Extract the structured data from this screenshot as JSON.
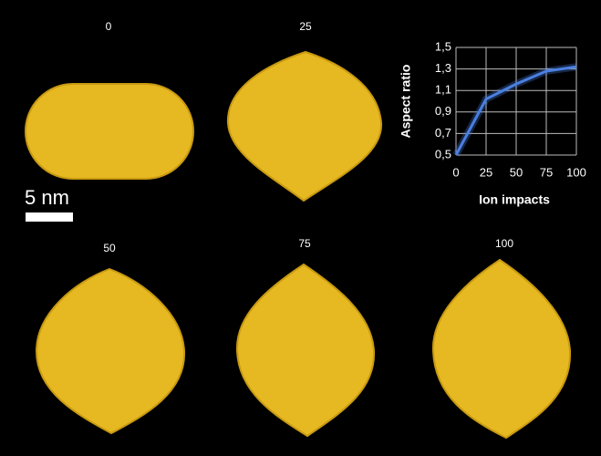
{
  "panels": [
    "0",
    "25",
    "50",
    "75",
    "100"
  ],
  "scale_bar": "5 nm",
  "chart_data": {
    "type": "line",
    "x": [
      0,
      25,
      50,
      75,
      100
    ],
    "series": [
      {
        "name": "Aspect ratio",
        "color": "#4a7fe0",
        "values": [
          0.5,
          1.02,
          1.16,
          1.28,
          1.32
        ]
      }
    ],
    "xlim": [
      0,
      100
    ],
    "xticks": [
      0,
      25,
      50,
      75,
      100
    ],
    "ylim": [
      0.5,
      1.5
    ],
    "yticks": [
      {
        "value": 0.5,
        "label": "0,5"
      },
      {
        "value": 0.7,
        "label": "0,7"
      },
      {
        "value": 0.9,
        "label": "0,9"
      },
      {
        "value": 1.1,
        "label": "1,1"
      },
      {
        "value": 1.3,
        "label": "1,3"
      },
      {
        "value": 1.5,
        "label": "1,5"
      }
    ],
    "xlabel": "Ion impacts",
    "ylabel": "Aspect ratio",
    "grid": true
  }
}
